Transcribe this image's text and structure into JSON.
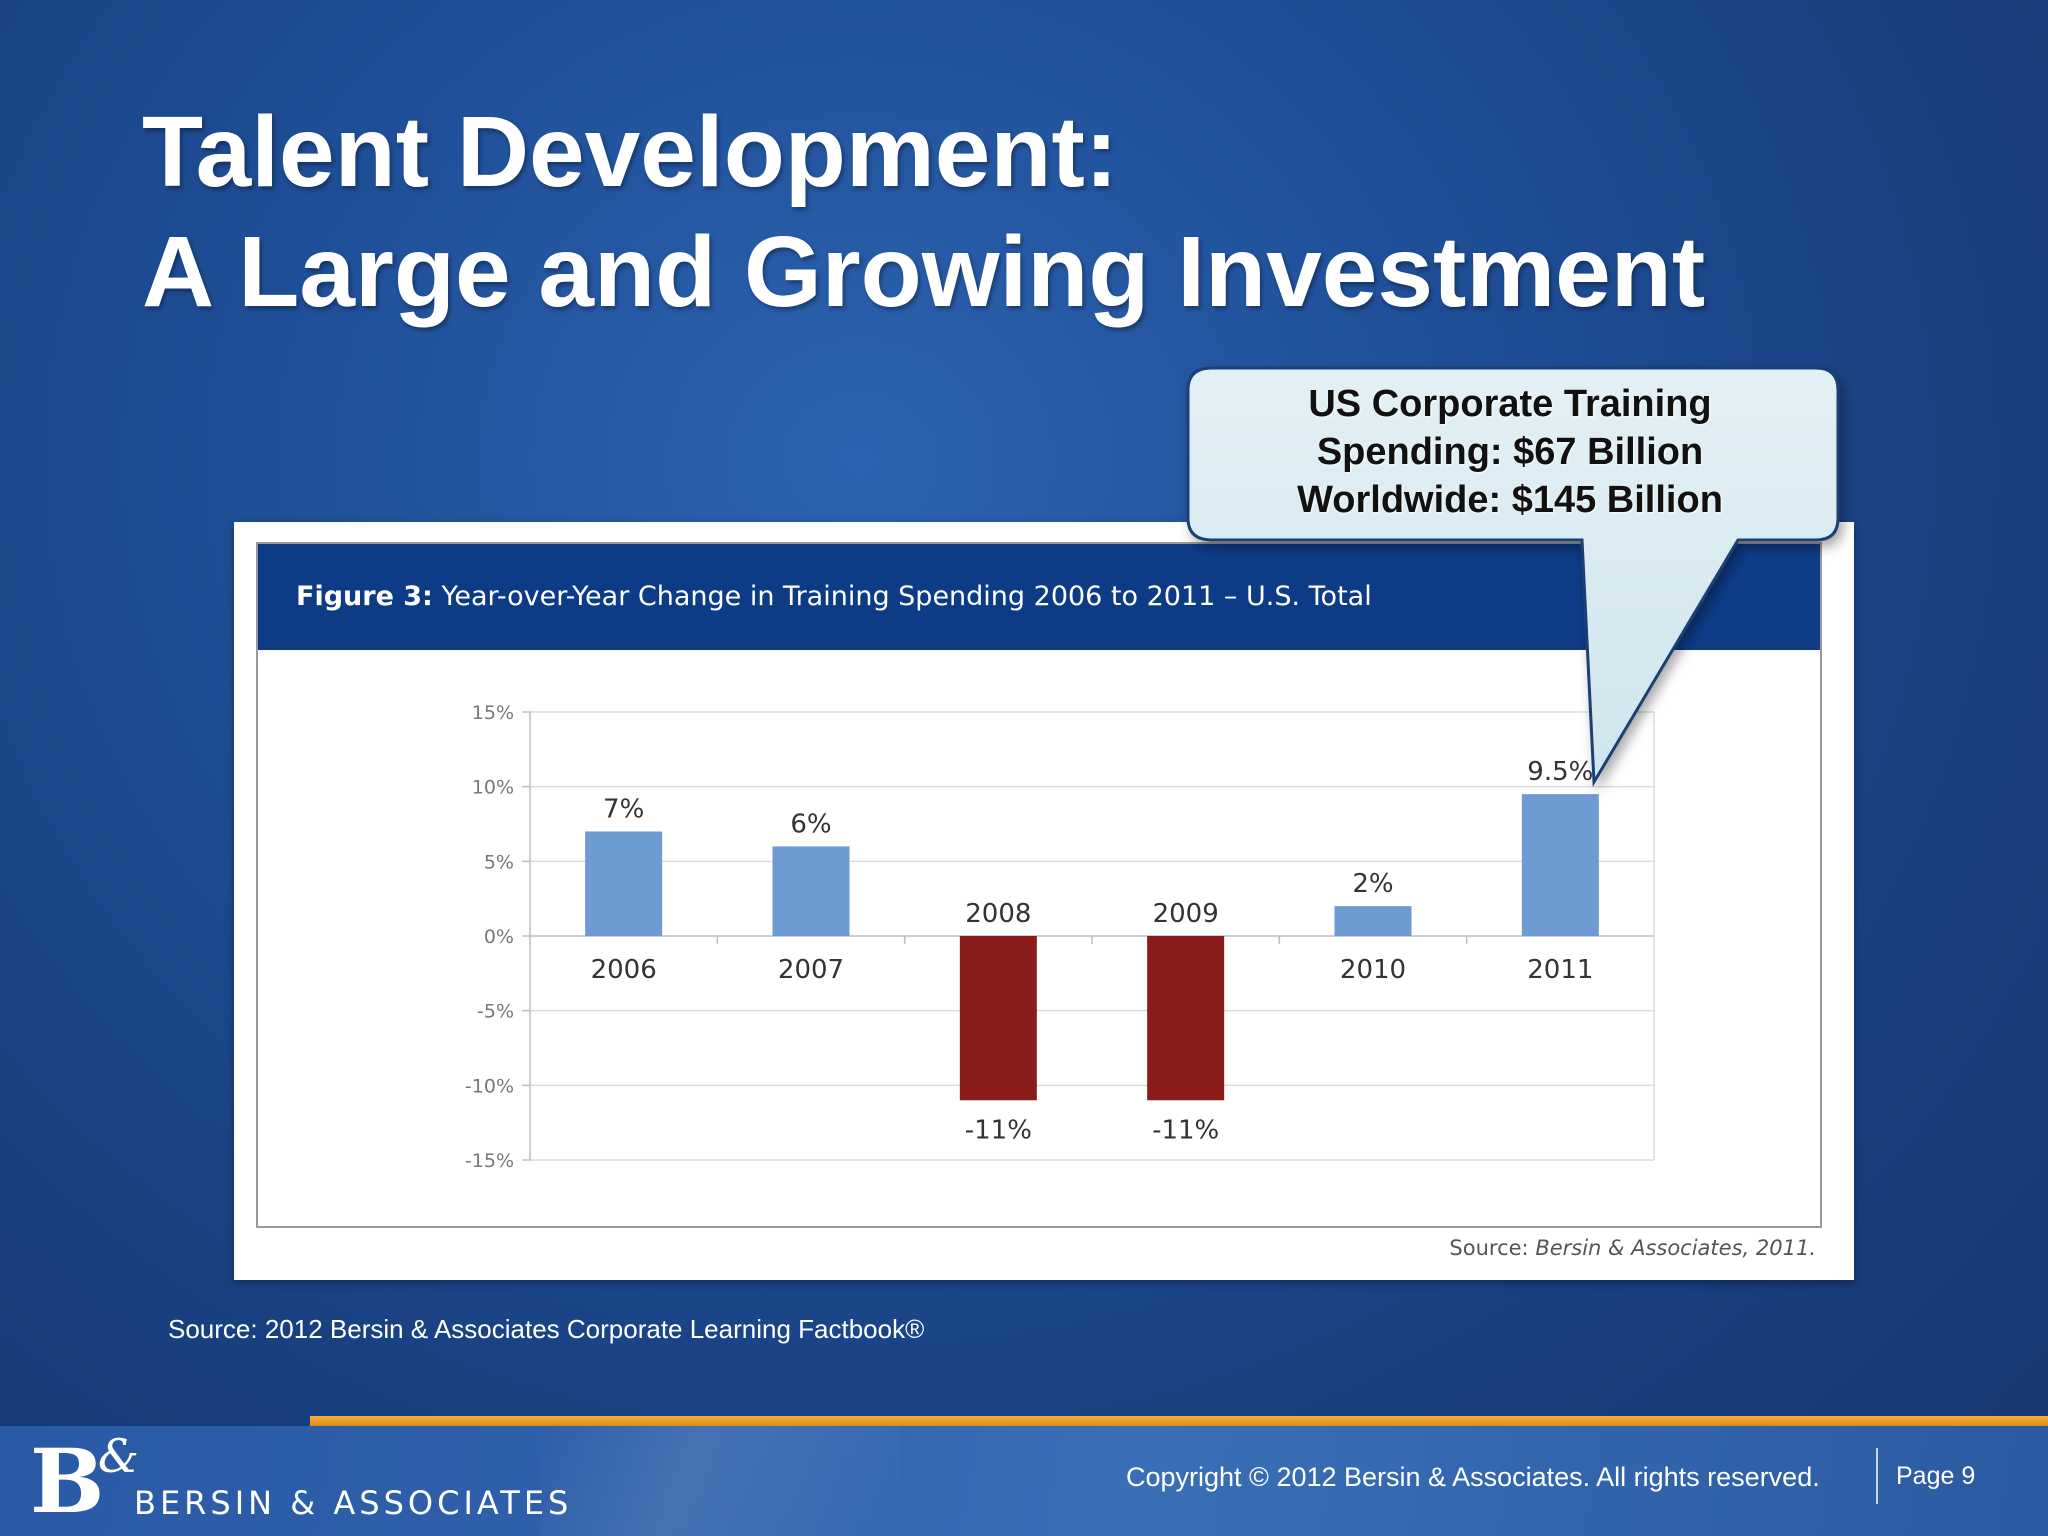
{
  "slide": {
    "title_line1": "Talent Development:",
    "title_line2": "A Large and Growing Investment",
    "callout": {
      "line1": "US Corporate Training",
      "line2": "Spending:  $67 Billion",
      "line3": "Worldwide:  $145 Billion"
    },
    "source_note": "Source:  2012 Bersin & Associates Corporate Learning Factbook®",
    "footer": {
      "logo_mark": "B",
      "logo_amp": "&",
      "logo_text": "BERSIN & ASSOCIATES",
      "copyright": "Copyright © 2012 Bersin & Associates. All rights reserved.",
      "page_label": "Page 9"
    }
  },
  "figure": {
    "title_bold": "Figure 3:",
    "title_rest": " Year-over-Year Change in Training Spending 2006 to 2011 – U.S. Total",
    "source_prefix": "Source: ",
    "source_italic": "Bersin & Associates, 2011."
  },
  "chart_data": {
    "type": "bar",
    "categories": [
      "2006",
      "2007",
      "2008",
      "2009",
      "2010",
      "2011"
    ],
    "values": [
      7,
      6,
      -11,
      -11,
      2,
      9.5
    ],
    "data_labels": [
      "7%",
      "6%",
      "-11%",
      "-11%",
      "2%",
      "9.5%"
    ],
    "ylim": [
      -15,
      15
    ],
    "yticks": [
      15,
      10,
      5,
      0,
      -5,
      -10,
      -15
    ],
    "ytick_labels": [
      "15%",
      "10%",
      "5%",
      "0%",
      "-5%",
      "-10%",
      "-15%"
    ],
    "title": "Year-over-Year Change in Training Spending 2006 to 2011 – U.S. Total",
    "xlabel": "",
    "ylabel": "",
    "grid": true,
    "colors": {
      "positive": "#6e9bd1",
      "negative": "#8b1a1a"
    }
  }
}
